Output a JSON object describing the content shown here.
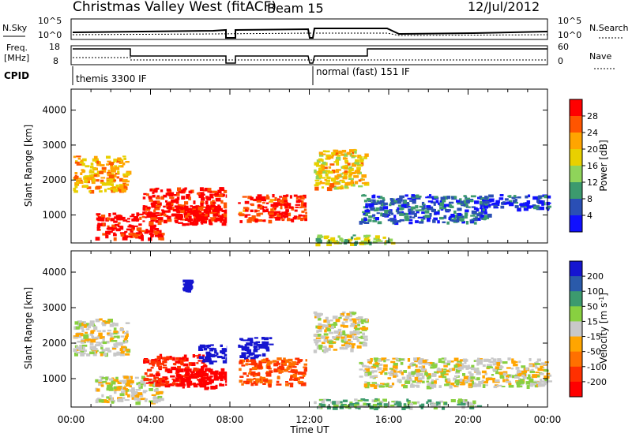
{
  "header": {
    "station": "Christmas Valley West (fitACF)",
    "beam": "Beam 15",
    "date": "12/Jul/2012"
  },
  "strip": {
    "nsky_label": "N.Sky",
    "nsearch_label": "N.Search",
    "freq_label_1": "Freq.",
    "freq_label_2": "[MHz]",
    "nave_label": "Nave",
    "cpid_label": "CPID",
    "nsky_ticks": [
      "10^5",
      "10^0"
    ],
    "nsearch_ticks": [
      "10^5",
      "10^0"
    ],
    "freq_ticks": [
      "18",
      "8"
    ],
    "nave_ticks": [
      "60",
      "0"
    ],
    "cpid_1": "themis 3300 IF",
    "cpid_2": "normal (fast) 151 IF"
  },
  "panels": {
    "ylabel": "Slant Range [km]",
    "yticks": [
      "4000",
      "3000",
      "2000",
      "1000"
    ],
    "xticks": [
      "00:00",
      "04:00",
      "08:00",
      "12:00",
      "16:00",
      "20:00",
      "00:00"
    ],
    "xlabel": "Time UT"
  },
  "power_bar": {
    "label": "Power [dB]",
    "ticks": [
      "28",
      "24",
      "20",
      "16",
      "12",
      "8",
      "4"
    ],
    "colors": [
      "#ff0000",
      "#ff5500",
      "#ffa500",
      "#e8d000",
      "#8fd45a",
      "#3c9a6e",
      "#2a4fb5",
      "#1010ff"
    ]
  },
  "velocity_bar": {
    "label": "Velocity [m s^-1]",
    "ticks": [
      "200",
      "100",
      "50",
      "15",
      "-15",
      "-50",
      "-100",
      "-200"
    ],
    "colors": [
      "#1515d0",
      "#2a5aaa",
      "#3c9a6e",
      "#88d040",
      "#c8c8c8",
      "#ffa500",
      "#ff7000",
      "#ff3000",
      "#ff0000"
    ]
  },
  "chart_data": [
    {
      "type": "heatmap",
      "title": "Power [dB]",
      "xlabel": "Time UT",
      "ylabel": "Slant Range [km]",
      "xlim_hours": [
        0,
        24
      ],
      "ylim_km": [
        200,
        4600
      ],
      "clim": [
        0,
        30
      ],
      "regions": [
        {
          "t0": 0.1,
          "t1": 2.8,
          "r0": 1700,
          "r1": 2700,
          "value": 20
        },
        {
          "t0": 1.2,
          "t1": 4.5,
          "r0": 350,
          "r1": 1100,
          "value": 29
        },
        {
          "t0": 3.6,
          "t1": 7.8,
          "r0": 850,
          "r1": 1800,
          "value": 28
        },
        {
          "t0": 5.2,
          "t1": 8.0,
          "r0": 750,
          "r1": 1300,
          "value": 30
        },
        {
          "t0": 8.4,
          "t1": 11.8,
          "r0": 850,
          "r1": 1600,
          "value": 27
        },
        {
          "t0": 12.2,
          "t1": 14.8,
          "r0": 1800,
          "r1": 2900,
          "value": 18
        },
        {
          "t0": 12.2,
          "t1": 16.2,
          "r0": 200,
          "r1": 450,
          "value": 14
        },
        {
          "t0": 14.5,
          "t1": 21.0,
          "r0": 800,
          "r1": 1600,
          "value": 6
        },
        {
          "t0": 20.5,
          "t1": 24.0,
          "r0": 1200,
          "r1": 1600,
          "value": 5
        }
      ]
    },
    {
      "type": "heatmap",
      "title": "Velocity [m s^-1]",
      "xlabel": "Time UT",
      "ylabel": "Slant Range [km]",
      "xlim_hours": [
        0,
        24
      ],
      "ylim_km": [
        200,
        4600
      ],
      "clim": [
        -250,
        250
      ],
      "regions": [
        {
          "t0": 0.1,
          "t1": 2.8,
          "r0": 1700,
          "r1": 2700,
          "value": 0
        },
        {
          "t0": 1.2,
          "t1": 4.5,
          "r0": 350,
          "r1": 1100,
          "value": 0
        },
        {
          "t0": 3.6,
          "t1": 6.8,
          "r0": 850,
          "r1": 1700,
          "value": -150
        },
        {
          "t0": 5.2,
          "t1": 8.0,
          "r0": 750,
          "r1": 1300,
          "value": -220
        },
        {
          "t0": 5.6,
          "t1": 6.0,
          "r0": 3500,
          "r1": 3800,
          "value": 220
        },
        {
          "t0": 6.4,
          "t1": 8.0,
          "r0": 1500,
          "r1": 2000,
          "value": 200
        },
        {
          "t0": 8.4,
          "t1": 10.0,
          "r0": 1600,
          "r1": 2200,
          "value": 210
        },
        {
          "t0": 8.4,
          "t1": 11.8,
          "r0": 850,
          "r1": 1600,
          "value": -80
        },
        {
          "t0": 12.2,
          "t1": 14.8,
          "r0": 1800,
          "r1": 2900,
          "value": 0
        },
        {
          "t0": 12.2,
          "t1": 20.5,
          "r0": 200,
          "r1": 450,
          "value": 30
        },
        {
          "t0": 14.5,
          "t1": 24.0,
          "r0": 800,
          "r1": 1600,
          "value": 0
        }
      ]
    }
  ]
}
